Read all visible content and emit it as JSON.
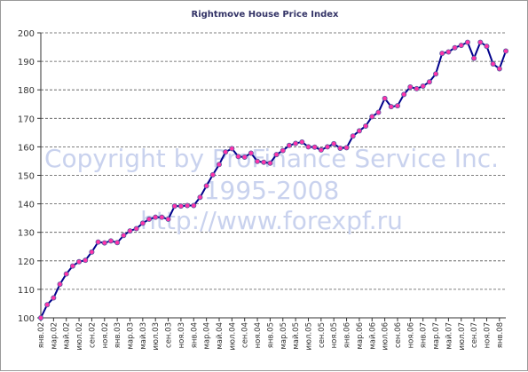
{
  "chart_data": {
    "type": "line",
    "title": "Rightmove House Price Index",
    "xlabel": "",
    "ylabel": "",
    "ylim": [
      100,
      200
    ],
    "yticks": [
      100,
      110,
      120,
      130,
      140,
      150,
      160,
      170,
      180,
      190,
      200
    ],
    "grid": "horizontal dashed",
    "legend": "none",
    "x_tick_labels": [
      "янв.02",
      "мар.02",
      "май.02",
      "июл.02",
      "сен.02",
      "ноя.02",
      "янв.03",
      "мар.03",
      "май.03",
      "июл.03",
      "сен.03",
      "ноя.03",
      "янв.04",
      "мар.04",
      "май.04",
      "июл.04",
      "сен.04",
      "ноя.04",
      "янв.05",
      "мар.05",
      "май.05",
      "июл.05",
      "сен.05",
      "ноя.05",
      "янв.06",
      "мар.06",
      "май.06",
      "июл.06",
      "сен.06",
      "ноя.06",
      "янв.07",
      "мар.07",
      "май.07",
      "июл.07",
      "сен.07",
      "ноя.07",
      "янв.08"
    ],
    "series": [
      {
        "values": [
          100.0,
          104.6,
          107.0,
          111.8,
          115.4,
          118.2,
          119.7,
          120.2,
          123.1,
          126.6,
          126.3,
          127.0,
          126.4,
          128.9,
          130.5,
          131.3,
          133.2,
          134.6,
          135.3,
          135.3,
          134.6,
          139.2,
          139.2,
          139.4,
          139.4,
          142.3,
          146.3,
          150.2,
          153.8,
          158.2,
          159.4,
          156.6,
          156.4,
          157.8,
          154.9,
          154.6,
          154.3,
          157.3,
          158.7,
          160.5,
          161.2,
          161.7,
          160.0,
          159.9,
          158.9,
          160.0,
          161.1,
          159.5,
          159.7,
          163.8,
          165.6,
          167.3,
          170.6,
          172.1,
          177.0,
          174.1,
          174.4,
          178.4,
          181.0,
          180.4,
          181.3,
          182.8,
          185.6,
          192.8,
          193.3,
          194.8,
          195.6,
          196.7,
          191.1,
          196.7,
          195.3,
          189.1,
          187.4,
          193.6
        ]
      }
    ],
    "colors": {
      "line": "#00008b",
      "marker_fill": "#ff33aa",
      "marker_edge": "#5a5aa0",
      "grid": "#555555",
      "axis": "#333333"
    }
  },
  "watermark": {
    "lines": [
      "Copyright by ProFinance Service Inc.",
      "1995-2008",
      "http://www.forexpf.ru"
    ]
  }
}
